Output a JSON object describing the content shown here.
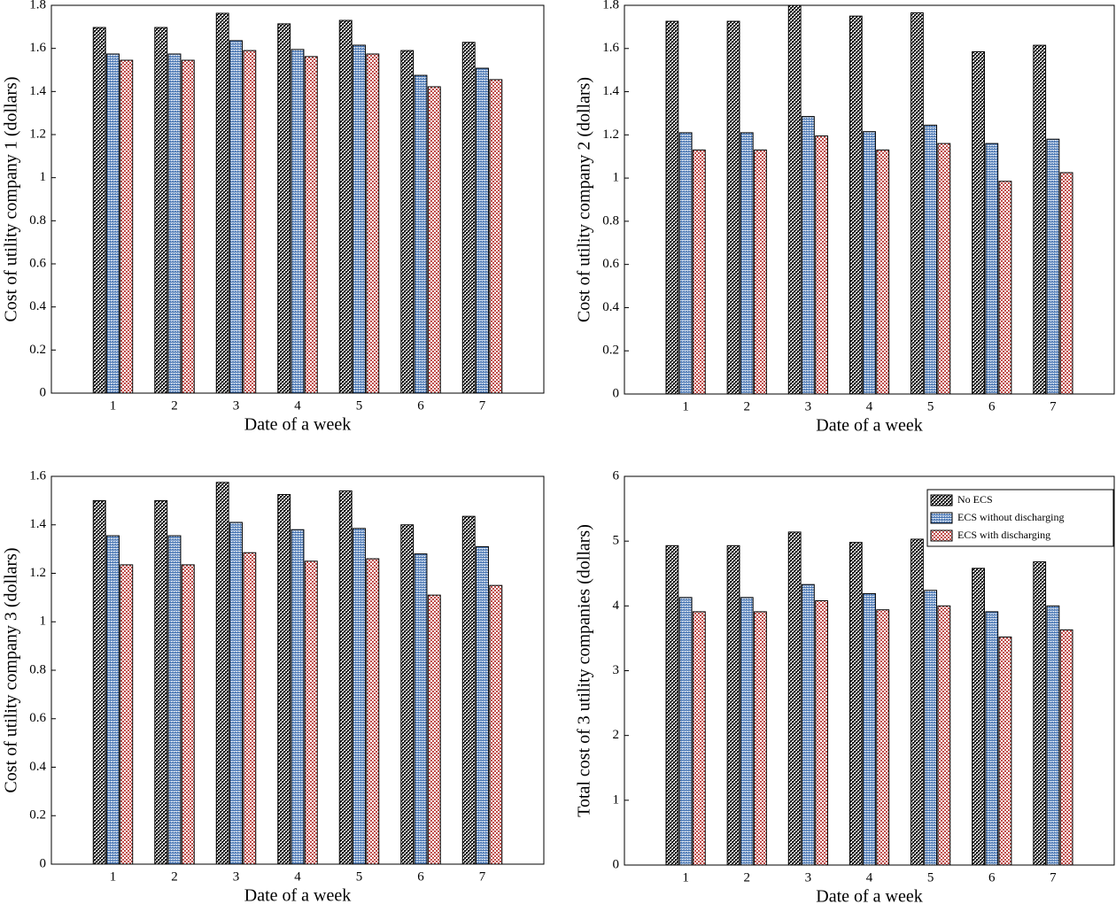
{
  "chart_data": [
    {
      "type": "bar",
      "xlabel": "Date of a week",
      "ylabel": "Cost of utility company 1 (dollars)",
      "x": [
        1,
        2,
        3,
        4,
        5,
        6,
        7
      ],
      "xlim": [
        0,
        8
      ],
      "xticks": [
        1,
        2,
        3,
        4,
        5,
        6,
        7
      ],
      "ylim": [
        0,
        1.8
      ],
      "yticks": [
        0,
        0.2,
        0.4,
        0.6,
        0.8,
        1,
        1.2,
        1.4,
        1.6,
        1.8
      ],
      "series": [
        {
          "color": "#222222",
          "values": [
            1.697,
            1.697,
            1.763,
            1.714,
            1.73,
            1.59,
            1.628
          ]
        },
        {
          "color": "#3f6fb0",
          "values": [
            1.574,
            1.574,
            1.636,
            1.595,
            1.615,
            1.475,
            1.508
          ]
        },
        {
          "color": "#c0504d",
          "values": [
            1.545,
            1.545,
            1.59,
            1.562,
            1.574,
            1.422,
            1.455
          ]
        }
      ]
    },
    {
      "type": "bar",
      "xlabel": "Date of a week",
      "ylabel": "Cost of utility company 2 (dollars)",
      "x": [
        1,
        2,
        3,
        4,
        5,
        6,
        7
      ],
      "xlim": [
        0,
        8
      ],
      "xticks": [
        1,
        2,
        3,
        4,
        5,
        6,
        7
      ],
      "ylim": [
        0,
        1.8
      ],
      "yticks": [
        0,
        0.2,
        0.4,
        0.6,
        0.8,
        1,
        1.2,
        1.4,
        1.6,
        1.8
      ],
      "series": [
        {
          "color": "#222222",
          "values": [
            1.726,
            1.726,
            1.8,
            1.75,
            1.765,
            1.585,
            1.615
          ]
        },
        {
          "color": "#3f6fb0",
          "values": [
            1.21,
            1.21,
            1.285,
            1.215,
            1.245,
            1.16,
            1.18
          ]
        },
        {
          "color": "#c0504d",
          "values": [
            1.13,
            1.13,
            1.195,
            1.13,
            1.16,
            0.985,
            1.025
          ]
        }
      ]
    },
    {
      "type": "bar",
      "xlabel": "Date of a week",
      "ylabel": "Cost of utility company 3 (dollars)",
      "x": [
        1,
        2,
        3,
        4,
        5,
        6,
        7
      ],
      "xlim": [
        0,
        8
      ],
      "xticks": [
        1,
        2,
        3,
        4,
        5,
        6,
        7
      ],
      "ylim": [
        0,
        1.6
      ],
      "yticks": [
        0,
        0.2,
        0.4,
        0.6,
        0.8,
        1,
        1.2,
        1.4,
        1.6
      ],
      "series": [
        {
          "color": "#222222",
          "values": [
            1.5,
            1.5,
            1.575,
            1.525,
            1.54,
            1.4,
            1.435
          ]
        },
        {
          "color": "#3f6fb0",
          "values": [
            1.355,
            1.355,
            1.41,
            1.38,
            1.385,
            1.28,
            1.31
          ]
        },
        {
          "color": "#c0504d",
          "values": [
            1.235,
            1.235,
            1.285,
            1.25,
            1.26,
            1.11,
            1.15
          ]
        }
      ]
    },
    {
      "type": "bar",
      "xlabel": "Date of a week",
      "ylabel": "Total cost of 3 utility companies (dollars)",
      "x": [
        1,
        2,
        3,
        4,
        5,
        6,
        7
      ],
      "xlim": [
        0,
        8
      ],
      "xticks": [
        1,
        2,
        3,
        4,
        5,
        6,
        7
      ],
      "ylim": [
        0,
        6
      ],
      "yticks": [
        0,
        1,
        2,
        3,
        4,
        5,
        6
      ],
      "legend": "upper right",
      "series": [
        {
          "name": "No ECS",
          "color": "#222222",
          "values": [
            4.93,
            4.93,
            5.14,
            4.98,
            5.03,
            4.58,
            4.68
          ]
        },
        {
          "name": "ECS without discharging",
          "color": "#3f6fb0",
          "values": [
            4.13,
            4.13,
            4.33,
            4.19,
            4.24,
            3.91,
            4.0
          ]
        },
        {
          "name": "ECS with discharging",
          "color": "#c0504d",
          "values": [
            3.91,
            3.91,
            4.08,
            3.94,
            4.0,
            3.52,
            3.63
          ]
        }
      ]
    }
  ]
}
